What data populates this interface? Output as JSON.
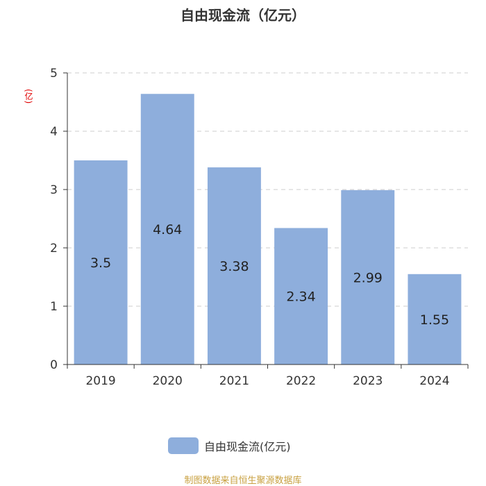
{
  "chart_data": {
    "type": "bar",
    "title": "自由现金流（亿元）",
    "unit_label": "(亿)",
    "categories": [
      "2019",
      "2020",
      "2021",
      "2022",
      "2023",
      "2024"
    ],
    "series": [
      {
        "name": "自由现金流(亿元)",
        "values": [
          3.5,
          4.64,
          3.38,
          2.34,
          2.99,
          1.55
        ],
        "color": "#8eaedc"
      }
    ],
    "data_labels": [
      "3.5",
      "4.64",
      "3.38",
      "2.34",
      "2.99",
      "1.55"
    ],
    "ylim": [
      0,
      5
    ],
    "yticks": [
      "0",
      "1",
      "2",
      "3",
      "4",
      "5"
    ],
    "grid": true,
    "legend_position": "bottom"
  },
  "footer": {
    "source": "制图数据来自恒生聚源数据库"
  }
}
